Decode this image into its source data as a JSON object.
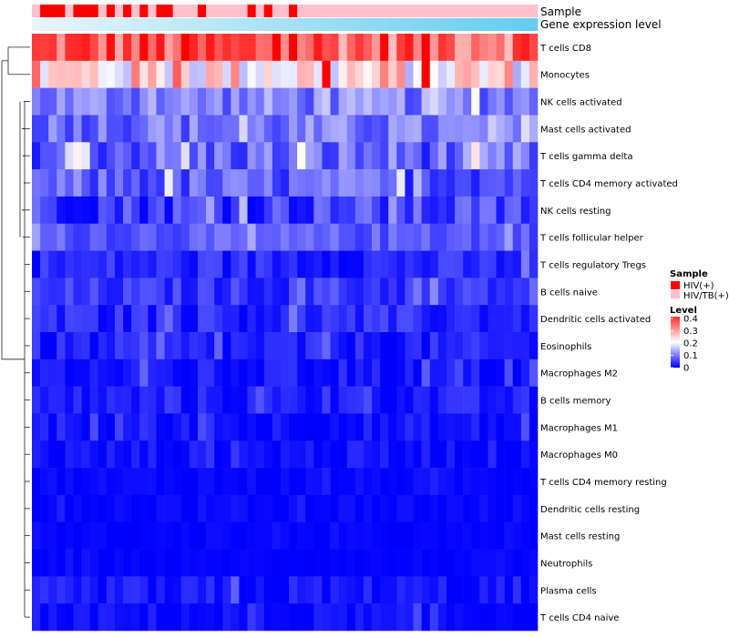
{
  "chart_data": {
    "type": "heatmap",
    "rows": [
      "T cells CD8",
      "Monocytes",
      "NK cells activated",
      "Mast cells activated",
      "T cells gamma delta",
      "T cells CD4 memory activated",
      "NK cells resting",
      "T cells follicular helper",
      "T cells regulatory  Tregs",
      "B cells naive",
      "Dendritic cells activated",
      "Eosinophils",
      "Macrophages M2",
      "B cells memory",
      "Macrophages M1",
      "Macrophages M0",
      "T cells CD4 memory resting",
      "Dendritic cells resting",
      "Mast cells resting",
      "Neutrophils",
      "Plasma cells",
      "T cells CD4 naive"
    ],
    "sample_groups": [
      1,
      0,
      0,
      0,
      1,
      0,
      0,
      0,
      1,
      0,
      1,
      0,
      1,
      0,
      1,
      0,
      0,
      1,
      1,
      1,
      0,
      1,
      1,
      1,
      1,
      1,
      0,
      1,
      0,
      1,
      1,
      0,
      1,
      1,
      1,
      1,
      1,
      1,
      1,
      1,
      1,
      1,
      1,
      1,
      1,
      1,
      1,
      1,
      1,
      1,
      1,
      1,
      1,
      1,
      1,
      1,
      1,
      1,
      1,
      1,
      1
    ],
    "annotations": {
      "sample_label": "Sample",
      "expression_label": "Gene expression level"
    },
    "legend": {
      "sample_title": "Sample",
      "sample_entries": [
        {
          "label": "HIV(+)",
          "color": "#ff0000"
        },
        {
          "label": "HIV/TB(+)",
          "color": "#ffc0cb"
        }
      ],
      "level_title": "Level",
      "level_ticks": [
        "0.4",
        "0.3",
        "0.2",
        "0.1",
        "0"
      ],
      "level_values": [
        0.4,
        0.3,
        0.2,
        0.1,
        0
      ]
    },
    "color_scale": {
      "low": "#0000ff",
      "mid": "#ffffff",
      "high": "#ff0000",
      "min": 0,
      "mid_value": 0.2,
      "max": 0.4
    },
    "values": {
      "T cells CD8": {
        "base": 0.33,
        "spread": 0.08
      },
      "Monocytes": {
        "base": 0.22,
        "spread": 0.09
      },
      "NK cells activated": {
        "base": 0.1,
        "spread": 0.05
      },
      "Mast cells activated": {
        "base": 0.09,
        "spread": 0.05
      },
      "T cells gamma delta": {
        "base": 0.08,
        "spread": 0.06
      },
      "T cells CD4 memory activated": {
        "base": 0.07,
        "spread": 0.05
      },
      "NK cells resting": {
        "base": 0.05,
        "spread": 0.05
      },
      "T cells follicular helper": {
        "base": 0.07,
        "spread": 0.03
      },
      "T cells regulatory  Tregs": {
        "base": 0.03,
        "spread": 0.03
      },
      "B cells naive": {
        "base": 0.04,
        "spread": 0.03
      },
      "Dendritic cells activated": {
        "base": 0.03,
        "spread": 0.03
      },
      "Eosinophils": {
        "base": 0.02,
        "spread": 0.03
      },
      "Macrophages M2": {
        "base": 0.015,
        "spread": 0.025
      },
      "B cells memory": {
        "base": 0.02,
        "spread": 0.025
      },
      "Macrophages M1": {
        "base": 0.01,
        "spread": 0.025
      },
      "Macrophages M0": {
        "base": 0.012,
        "spread": 0.02
      },
      "T cells CD4 memory resting": {
        "base": 0.005,
        "spread": 0.01
      },
      "Dendritic cells resting": {
        "base": 0.005,
        "spread": 0.012
      },
      "Mast cells resting": {
        "base": 0.002,
        "spread": 0.006
      },
      "Neutrophils": {
        "base": 0.002,
        "spread": 0.006
      },
      "Plasma cells": {
        "base": 0.01,
        "spread": 0.03
      },
      "T cells CD4 naive": {
        "base": 0.008,
        "spread": 0.02
      }
    },
    "n_samples": 61
  }
}
